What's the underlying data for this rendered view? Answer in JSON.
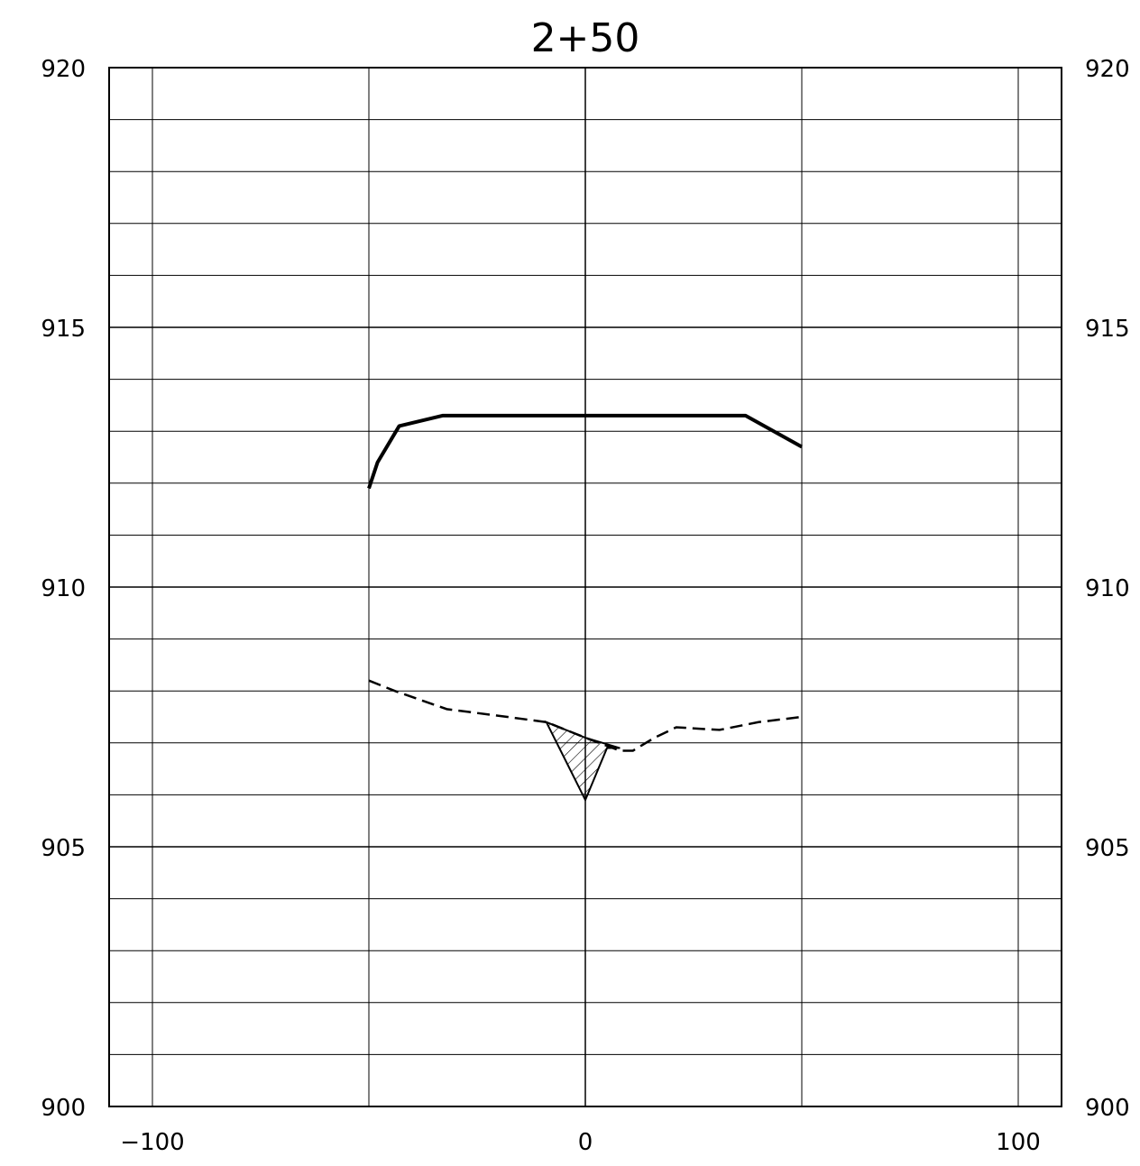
{
  "title": "2+50",
  "chart_data": {
    "type": "line",
    "title": "2+50",
    "xlim": [
      -110,
      110
    ],
    "ylim": [
      900,
      920
    ],
    "x_ticks": [
      -100,
      0,
      100
    ],
    "x_tick_labels": [
      "−100",
      "0",
      "100"
    ],
    "x_gridlines": [
      -100,
      -50,
      0,
      50,
      100
    ],
    "y_ticks": [
      900,
      905,
      910,
      915,
      920
    ],
    "y_tick_labels": [
      "900",
      "905",
      "910",
      "915",
      "920"
    ],
    "y_minor_step": 1,
    "grid": true,
    "series": [
      {
        "style": "solid-thick",
        "x": [
          -50,
          -48,
          -43,
          -33,
          37,
          50
        ],
        "y": [
          911.9,
          912.4,
          913.1,
          913.3,
          913.3,
          912.7
        ]
      },
      {
        "style": "dashed",
        "x": [
          -50,
          -44,
          -32,
          -18,
          -9,
          0,
          8,
          11,
          16,
          21,
          31,
          40,
          50
        ],
        "y": [
          908.2,
          908.0,
          907.65,
          907.5,
          907.4,
          907.1,
          906.85,
          906.85,
          907.1,
          907.3,
          907.25,
          907.4,
          907.5
        ]
      },
      {
        "style": "hatched-area",
        "x": [
          -9,
          0,
          5,
          8,
          0
        ],
        "y": [
          907.4,
          905.9,
          906.9,
          906.9,
          907.1
        ]
      }
    ]
  }
}
